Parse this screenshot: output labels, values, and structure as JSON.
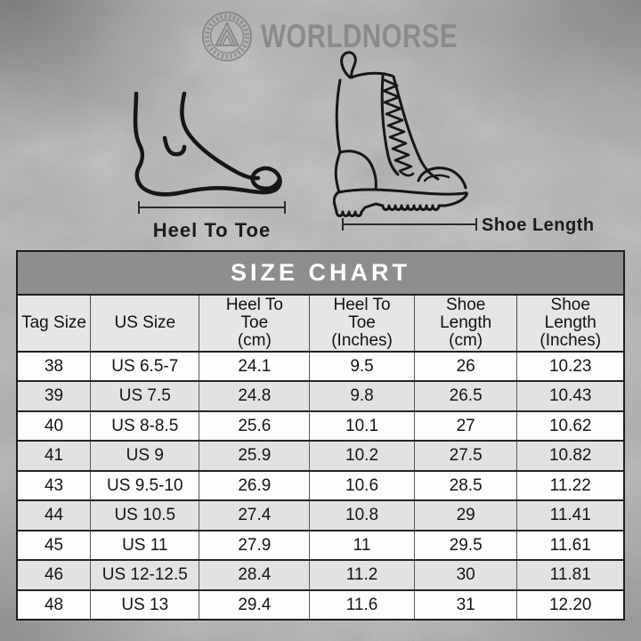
{
  "brand": {
    "name": "WORLDNORSE",
    "logo_icon": "valknut-emblem-icon",
    "logo_color": "#8a8a8a"
  },
  "diagram": {
    "foot_label": "Heel To Toe",
    "boot_label": "Shoe Length",
    "foot_icon": "foot-line-drawing",
    "boot_icon": "combat-boot-line-drawing",
    "line_art_color": "#161616"
  },
  "chart_data": {
    "type": "table",
    "title": "SIZE CHART",
    "columns": [
      "Tag Size",
      "US Size",
      "Heel To\nToe\n(cm)",
      "Heel To\nToe\n(Inches)",
      "Shoe\nLength\n(cm)",
      "Shoe\nLength\n(Inches)"
    ],
    "rows": [
      [
        "38",
        "US 6.5-7",
        "24.1",
        "9.5",
        "26",
        "10.23"
      ],
      [
        "39",
        "US 7.5",
        "24.8",
        "9.8",
        "26.5",
        "10.43"
      ],
      [
        "40",
        "US 8-8.5",
        "25.6",
        "10.1",
        "27",
        "10.62"
      ],
      [
        "41",
        "US 9",
        "25.9",
        "10.2",
        "27.5",
        "10.82"
      ],
      [
        "43",
        "US 9.5-10",
        "26.9",
        "10.6",
        "28.5",
        "11.22"
      ],
      [
        "44",
        "US 10.5",
        "27.4",
        "10.8",
        "29",
        "11.41"
      ],
      [
        "45",
        "US 11",
        "27.9",
        "11",
        "29.5",
        "11.61"
      ],
      [
        "46",
        "US 12-12.5",
        "28.4",
        "11.2",
        "30",
        "11.81"
      ],
      [
        "48",
        "US 13",
        "29.4",
        "11.6",
        "31",
        "12.20"
      ]
    ],
    "layout": {
      "row_shading": "alternate",
      "title_bar_bg": "#8e8e8e",
      "title_text_color": "#ffffff",
      "header_bg": "#e6e6e4",
      "row_bg": "#fdfdfd",
      "row_alt_bg": "#e2e2e2",
      "border_color": "#1d1d1d"
    }
  }
}
